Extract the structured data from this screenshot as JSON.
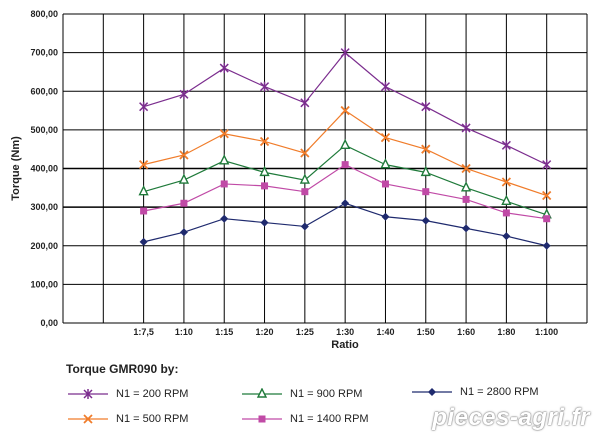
{
  "chart_data": {
    "type": "line",
    "xlabel": "Ratio",
    "ylabel": "Torque (Nm)",
    "categories": [
      "1:7,5",
      "1:10",
      "1:15",
      "1:20",
      "1:25",
      "1:30",
      "1:40",
      "1:50",
      "1:60",
      "1:80",
      "1:100"
    ],
    "ylim": [
      0,
      800
    ],
    "yticks": [
      "0,00",
      "100,00",
      "200,00",
      "300,00",
      "400,00",
      "500,00",
      "600,00",
      "700,00",
      "800,00"
    ],
    "grid": true,
    "series": [
      {
        "name": "N1 = 200 RPM",
        "color": "#7b2d8e",
        "marker": "asterisk",
        "values": [
          560,
          592,
          660,
          612,
          570,
          700,
          612,
          560,
          505,
          460,
          410
        ]
      },
      {
        "name": "N1 = 500 RPM",
        "color": "#f07c2a",
        "marker": "x",
        "values": [
          410,
          435,
          490,
          470,
          440,
          550,
          480,
          450,
          400,
          365,
          330
        ]
      },
      {
        "name": "N1 = 900 RPM",
        "color": "#1f7a3a",
        "marker": "triangle",
        "values": [
          340,
          370,
          420,
          390,
          370,
          460,
          410,
          390,
          350,
          315,
          280
        ]
      },
      {
        "name": "N1 = 1400 RPM",
        "color": "#c04aa6",
        "marker": "square",
        "values": [
          290,
          310,
          360,
          355,
          340,
          410,
          360,
          340,
          320,
          285,
          270
        ]
      },
      {
        "name": "N1 = 2800 RPM",
        "color": "#1f2a6e",
        "marker": "diamond",
        "values": [
          210,
          235,
          270,
          260,
          250,
          310,
          275,
          265,
          245,
          225,
          200
        ]
      }
    ]
  },
  "legend": {
    "title": "Torque GMR090 by:",
    "items": [
      {
        "label": "N1 = 200 RPM",
        "color": "#7b2d8e",
        "marker": "asterisk"
      },
      {
        "label": "N1 = 900 RPM",
        "color": "#1f7a3a",
        "marker": "triangle"
      },
      {
        "label": "N1 = 2800 RPM",
        "color": "#1f2a6e",
        "marker": "diamond"
      },
      {
        "label": "N1 = 500 RPM",
        "color": "#f07c2a",
        "marker": "x"
      },
      {
        "label": "N1 = 1400 RPM",
        "color": "#c04aa6",
        "marker": "square"
      }
    ]
  },
  "watermark": "pieces-agri.fr"
}
